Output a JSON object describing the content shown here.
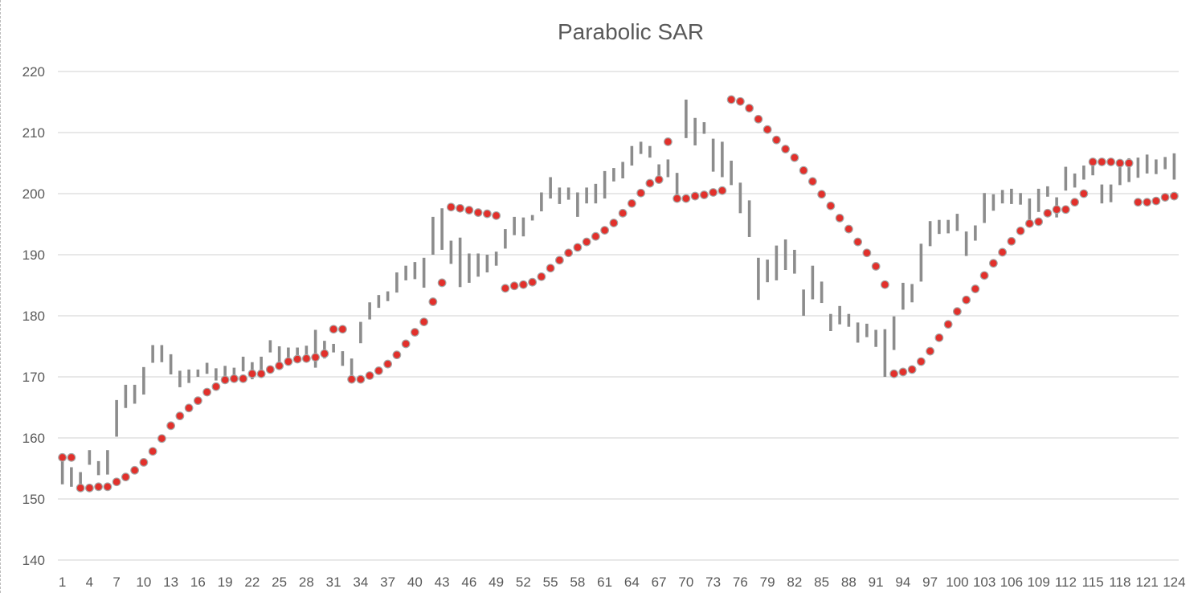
{
  "chart_data": {
    "type": "scatter",
    "title": "Parabolic SAR",
    "xlabel": "",
    "ylabel": "",
    "ylim": [
      140,
      220
    ],
    "y_ticks": [
      140,
      150,
      160,
      170,
      180,
      190,
      200,
      210,
      220
    ],
    "x": [
      1,
      2,
      3,
      4,
      5,
      6,
      7,
      8,
      9,
      10,
      11,
      12,
      13,
      14,
      15,
      16,
      17,
      18,
      19,
      20,
      21,
      22,
      23,
      24,
      25,
      26,
      27,
      28,
      29,
      30,
      31,
      32,
      33,
      34,
      35,
      36,
      37,
      38,
      39,
      40,
      41,
      42,
      43,
      44,
      45,
      46,
      47,
      48,
      49,
      50,
      51,
      52,
      53,
      54,
      55,
      56,
      57,
      58,
      59,
      60,
      61,
      62,
      63,
      64,
      65,
      66,
      67,
      68,
      69,
      70,
      71,
      72,
      73,
      74,
      75,
      76,
      77,
      78,
      79,
      80,
      81,
      82,
      83,
      84,
      85,
      86,
      87,
      88,
      89,
      90,
      91,
      92,
      93,
      94,
      95,
      96,
      97,
      98,
      99,
      100,
      101,
      102,
      103,
      104,
      105,
      106,
      107,
      108,
      109,
      110,
      111,
      112,
      113,
      114,
      115,
      116,
      117,
      118,
      119,
      120,
      121,
      122,
      123,
      124
    ],
    "x_tick_labels": [
      "1",
      "4",
      "7",
      "10",
      "13",
      "16",
      "19",
      "22",
      "25",
      "28",
      "31",
      "34",
      "37",
      "40",
      "43",
      "46",
      "49",
      "52",
      "55",
      "58",
      "61",
      "64",
      "67",
      "70",
      "73",
      "76",
      "79",
      "82",
      "85",
      "88",
      "91",
      "94",
      "97",
      "100",
      "103",
      "106",
      "109",
      "112",
      "115",
      "118",
      "121",
      "124"
    ],
    "grid": true,
    "legend": "none",
    "colors": {
      "bars": "#8c8c8c",
      "sar_fill": "#e2302b",
      "sar_edge": "#a6a6a6",
      "grid": "#d9d9d9",
      "text": "#595959"
    },
    "series": [
      {
        "type": "high-low bars",
        "high": [
          156.6,
          155.2,
          154.4,
          158.0,
          156.2,
          158.0,
          166.2,
          168.7,
          168.7,
          171.6,
          175.2,
          175.2,
          173.7,
          171.0,
          171.2,
          171.2,
          172.3,
          171.4,
          171.8,
          171.5,
          173.3,
          172.4,
          173.3,
          176.0,
          175.0,
          174.8,
          174.8,
          175.1,
          177.7,
          175.9,
          175.4,
          174.2,
          173.0,
          179.0,
          182.2,
          183.4,
          184.0,
          187.1,
          188.2,
          188.8,
          189.5,
          196.2,
          197.6,
          192.3,
          192.8,
          190.2,
          190.2,
          190.0,
          190.5,
          194.2,
          196.2,
          196.1,
          196.5,
          200.2,
          202.7,
          201.0,
          201.0,
          200.2,
          201.0,
          201.6,
          203.7,
          204.2,
          205.2,
          207.8,
          208.5,
          207.8,
          204.8,
          205.6,
          203.4,
          215.4,
          212.4,
          211.7,
          209.0,
          208.5,
          205.4,
          201.8,
          198.9,
          189.5,
          189.2,
          191.5,
          192.5,
          190.8,
          184.3,
          188.2,
          185.6,
          180.3,
          181.6,
          180.3,
          178.9,
          178.7,
          177.7,
          177.8,
          179.9,
          185.4,
          185.2,
          191.8,
          195.5,
          195.7,
          195.7,
          196.7,
          193.8,
          194.8,
          200.1,
          199.9,
          200.6,
          200.8,
          200.1,
          199.2,
          200.8,
          201.2,
          199.4,
          204.4,
          203.3,
          204.6,
          205.1,
          201.5,
          201.5,
          204.4,
          205.8,
          205.9,
          206.4,
          205.6,
          206.0,
          206.6
        ],
        "low": [
          152.4,
          152.0,
          151.8,
          155.6,
          153.9,
          154.0,
          160.2,
          164.9,
          165.6,
          167.1,
          172.3,
          172.4,
          170.4,
          168.3,
          169.0,
          170.0,
          170.5,
          169.4,
          169.8,
          169.8,
          170.9,
          169.6,
          170.6,
          174.0,
          172.2,
          172.6,
          172.6,
          172.9,
          171.5,
          173.0,
          174.0,
          171.8,
          169.3,
          175.5,
          179.4,
          181.3,
          182.4,
          183.8,
          185.8,
          186.0,
          184.6,
          190.0,
          190.8,
          188.5,
          184.7,
          185.4,
          186.4,
          187.1,
          188.2,
          191.0,
          193.2,
          193.0,
          195.6,
          197.1,
          199.2,
          198.3,
          199.0,
          196.2,
          198.4,
          198.4,
          199.2,
          202.0,
          202.5,
          204.6,
          206.5,
          205.9,
          202.4,
          202.7,
          198.6,
          209.1,
          207.9,
          209.8,
          203.6,
          202.7,
          201.4,
          196.8,
          192.9,
          182.6,
          185.5,
          185.8,
          187.5,
          186.9,
          180.0,
          182.7,
          182.1,
          177.5,
          178.6,
          178.2,
          175.6,
          176.5,
          174.9,
          170.0,
          174.4,
          181.0,
          182.2,
          185.6,
          191.4,
          193.4,
          193.5,
          193.9,
          189.8,
          192.3,
          195.2,
          197.2,
          198.4,
          198.3,
          198.2,
          195.6,
          197.0,
          199.5,
          196.1,
          200.5,
          201.0,
          202.3,
          203.0,
          198.4,
          198.6,
          201.4,
          201.9,
          202.6,
          203.3,
          203.2,
          204.0,
          202.3
        ]
      },
      {
        "name": "SAR",
        "type": "dots",
        "values": [
          156.8,
          156.8,
          151.8,
          151.8,
          152.0,
          152.0,
          152.8,
          153.6,
          154.7,
          156.0,
          157.8,
          159.9,
          162.0,
          163.6,
          164.9,
          166.1,
          167.5,
          168.4,
          169.5,
          169.7,
          169.7,
          170.5,
          170.5,
          171.2,
          171.8,
          172.5,
          172.9,
          173.0,
          173.2,
          173.8,
          177.8,
          177.8,
          169.6,
          169.6,
          170.2,
          171.0,
          172.1,
          173.6,
          175.4,
          177.3,
          179.0,
          182.3,
          185.4,
          197.8,
          197.6,
          197.3,
          196.9,
          196.7,
          196.4,
          184.5,
          184.9,
          185.1,
          185.5,
          186.4,
          187.8,
          189.1,
          190.3,
          191.2,
          192.1,
          193.0,
          194.0,
          195.2,
          196.8,
          198.4,
          200.1,
          201.7,
          202.3,
          208.5,
          199.2,
          199.2,
          199.6,
          199.8,
          200.2,
          200.5,
          215.4,
          215.1,
          214.0,
          212.2,
          210.5,
          208.8,
          207.3,
          205.9,
          203.8,
          202.0,
          199.9,
          198.0,
          196.0,
          194.2,
          192.1,
          190.3,
          188.1,
          185.1,
          170.5,
          170.8,
          171.2,
          172.5,
          174.2,
          176.4,
          178.6,
          180.7,
          182.6,
          184.4,
          186.6,
          188.6,
          190.4,
          192.2,
          193.9,
          195.1,
          195.4,
          196.8,
          197.4,
          197.4,
          198.6,
          200.0,
          205.2,
          205.2,
          205.2,
          205.0,
          205.0,
          198.6,
          198.6,
          198.8,
          199.4,
          199.6
        ]
      }
    ]
  }
}
